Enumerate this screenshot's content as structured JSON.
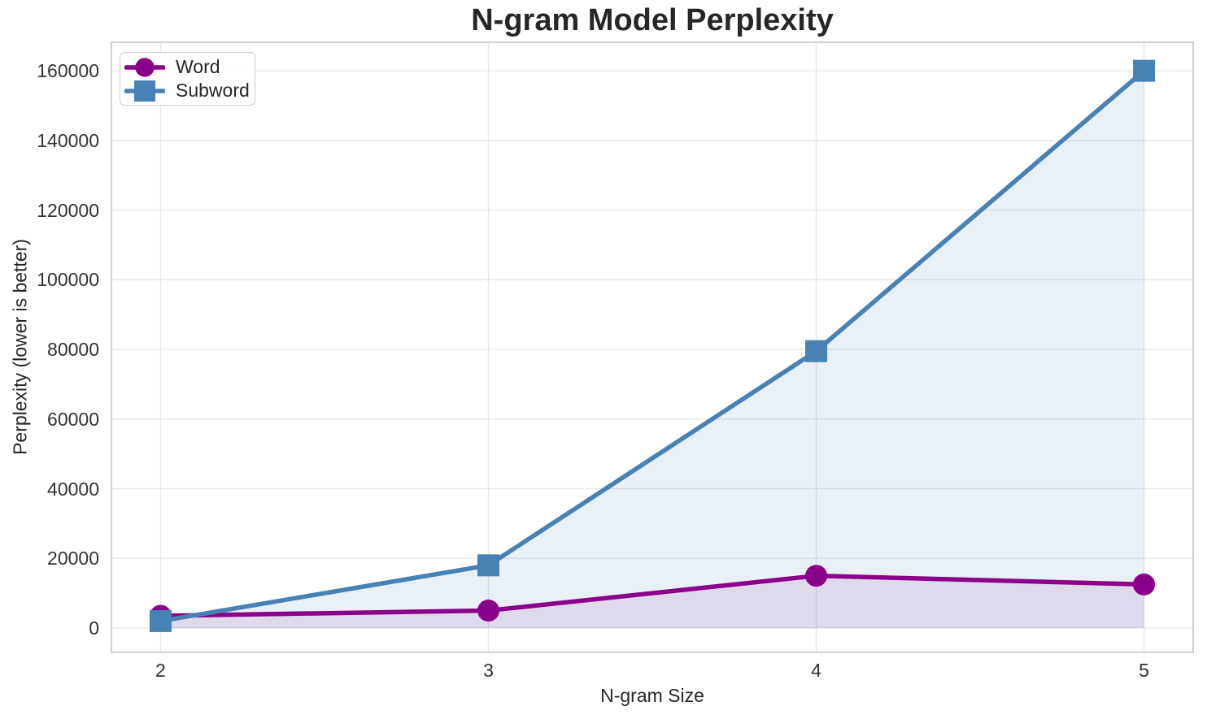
{
  "chart_data": {
    "type": "line",
    "title": "N-gram Model Perplexity",
    "xlabel": "N-gram Size",
    "ylabel": "Perplexity (lower is better)",
    "x": [
      2,
      3,
      4,
      5
    ],
    "series": [
      {
        "name": "Word",
        "marker": "circle",
        "color": "#8B008B",
        "fill_alpha": 0.1,
        "values": [
          3500,
          5000,
          15000,
          12500
        ]
      },
      {
        "name": "Subword",
        "marker": "square",
        "color": "#4682B4",
        "fill_alpha": 0.12,
        "values": [
          2000,
          18000,
          79500,
          160000
        ]
      }
    ],
    "x_tick_labels": [
      "2",
      "3",
      "4",
      "5"
    ],
    "x_tick_values": [
      2,
      3,
      4,
      5
    ],
    "y_tick_labels": [
      "0",
      "20000",
      "40000",
      "60000",
      "80000",
      "100000",
      "120000",
      "140000",
      "160000"
    ],
    "y_tick_values": [
      0,
      20000,
      40000,
      60000,
      80000,
      100000,
      120000,
      140000,
      160000
    ],
    "xlim": [
      1.85,
      5.15
    ],
    "ylim": [
      -7000,
      168200
    ],
    "fill_baseline": 0,
    "grid": true,
    "legend_position": "upper-left",
    "colors": {
      "grid": "#e8e8e8",
      "spine": "#d0d0d0",
      "text": "#262626",
      "tick_text": "#333333",
      "background": "#ffffff"
    }
  }
}
